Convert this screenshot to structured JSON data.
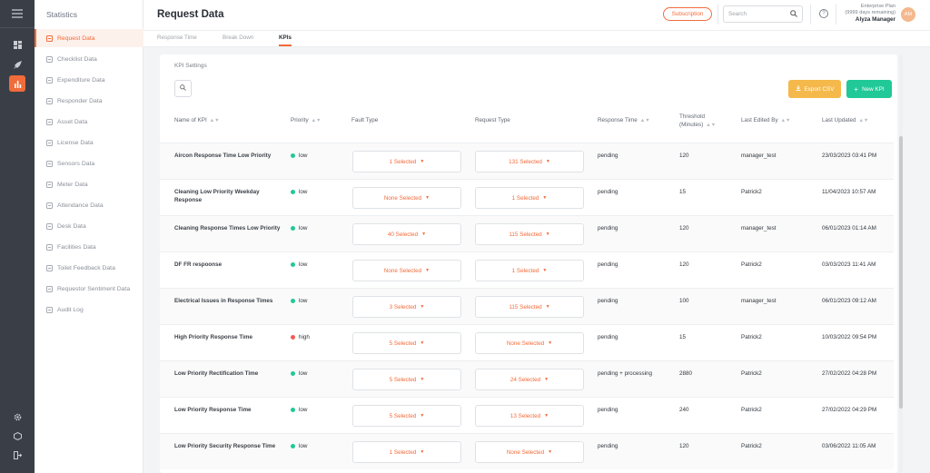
{
  "colors": {
    "accent": "#f26b3a",
    "rail": "#3a3f47",
    "export": "#f5b84a",
    "new": "#20c997",
    "low": "#20c997",
    "high": "#f25c54"
  },
  "rail": {
    "icons": [
      "menu-icon",
      "dashboard-icon",
      "rocket-icon",
      "chart-icon",
      "gear-icon",
      "box-icon",
      "logout-icon"
    ]
  },
  "sidebar": {
    "title": "Statistics",
    "items": [
      {
        "label": "Request Data",
        "icon": "request-icon",
        "active": true
      },
      {
        "label": "Checklist Data",
        "icon": "checklist-icon"
      },
      {
        "label": "Expenditure Data",
        "icon": "expenditure-icon"
      },
      {
        "label": "Responder Data",
        "icon": "responder-icon"
      },
      {
        "label": "Asset Data",
        "icon": "asset-icon"
      },
      {
        "label": "License Data",
        "icon": "license-icon"
      },
      {
        "label": "Sensors Data",
        "icon": "sensors-icon"
      },
      {
        "label": "Meter Data",
        "icon": "meter-icon"
      },
      {
        "label": "Attendance Data",
        "icon": "attendance-icon"
      },
      {
        "label": "Desk Data",
        "icon": "desk-icon"
      },
      {
        "label": "Facilities Data",
        "icon": "facilities-icon"
      },
      {
        "label": "Toilet Feedback Data",
        "icon": "toilet-icon"
      },
      {
        "label": "Requestor Sentiment Data",
        "icon": "sentiment-icon"
      },
      {
        "label": "Audit Log",
        "icon": "audit-icon"
      }
    ]
  },
  "header": {
    "title": "Request Data",
    "subscription": "Subscription",
    "search_placeholder": "Search",
    "help": "?",
    "plan_line1": "Enterprise Plan",
    "plan_line2": "(9999 days remaining)",
    "user_name": "Alyza Manager",
    "avatar_initials": "AM"
  },
  "tabs": [
    "Response Time",
    "Break Down",
    "KPIs"
  ],
  "card": {
    "title": "KPI Settings",
    "export_label": "Export CSV",
    "new_label": "New KPI"
  },
  "table": {
    "headers": [
      "Name of KPI",
      "Priority",
      "Fault Type",
      "Request Type",
      "Response Time",
      "Threshold (Minutes)",
      "Last Edited By",
      "Last Updated"
    ],
    "rows": [
      {
        "name": "Aircon Response Time Low Priority",
        "priority": "low",
        "fault": "1 Selected",
        "request": "131 Selected",
        "response": "pending",
        "threshold": "120",
        "editor": "manager_test",
        "updated": "23/03/2023 03:41 PM"
      },
      {
        "name": "Cleaning Low Priority Weekday Response",
        "priority": "low",
        "fault": "None Selected",
        "request": "1 Selected",
        "response": "pending",
        "threshold": "15",
        "editor": "Patrick2",
        "updated": "11/04/2023 10:57 AM"
      },
      {
        "name": "Cleaning Response Times Low Priority",
        "priority": "low",
        "fault": "40 Selected",
        "request": "115 Selected",
        "response": "pending",
        "threshold": "120",
        "editor": "manager_test",
        "updated": "06/01/2023 01:14 AM"
      },
      {
        "name": "DF FR respoonse",
        "priority": "low",
        "fault": "None Selected",
        "request": "1 Selected",
        "response": "pending",
        "threshold": "120",
        "editor": "Patrick2",
        "updated": "03/03/2023 11:41 AM"
      },
      {
        "name": "Electrical Issues in Response Times",
        "priority": "low",
        "fault": "3 Selected",
        "request": "115 Selected",
        "response": "pending",
        "threshold": "100",
        "editor": "manager_test",
        "updated": "06/01/2023 09:12 AM"
      },
      {
        "name": "High Priority Response Time",
        "priority": "high",
        "fault": "5 Selected",
        "request": "None Selected",
        "response": "pending",
        "threshold": "15",
        "editor": "Patrick2",
        "updated": "10/03/2022 09:54 PM"
      },
      {
        "name": "Low Priority Rectification Time",
        "priority": "low",
        "fault": "5 Selected",
        "request": "24 Selected",
        "response": "pending + processing",
        "threshold": "2880",
        "editor": "Patrick2",
        "updated": "27/02/2022 04:28 PM"
      },
      {
        "name": "Low Priority Response Time",
        "priority": "low",
        "fault": "5 Selected",
        "request": "13 Selected",
        "response": "pending",
        "threshold": "240",
        "editor": "Patrick2",
        "updated": "27/02/2022 04:29 PM"
      },
      {
        "name": "Low Priority Security Response Time",
        "priority": "low",
        "fault": "1 Selected",
        "request": "None Selected",
        "response": "pending",
        "threshold": "120",
        "editor": "Patrick2",
        "updated": "03/06/2022 11:05 AM"
      }
    ]
  }
}
